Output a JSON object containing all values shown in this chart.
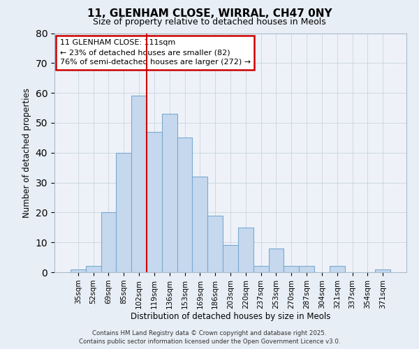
{
  "title": "11, GLENHAM CLOSE, WIRRAL, CH47 0NY",
  "subtitle": "Size of property relative to detached houses in Meols",
  "xlabel": "Distribution of detached houses by size in Meols",
  "ylabel": "Number of detached properties",
  "bar_labels": [
    "35sqm",
    "52sqm",
    "69sqm",
    "85sqm",
    "102sqm",
    "119sqm",
    "136sqm",
    "153sqm",
    "169sqm",
    "186sqm",
    "203sqm",
    "220sqm",
    "237sqm",
    "253sqm",
    "270sqm",
    "287sqm",
    "304sqm",
    "321sqm",
    "337sqm",
    "354sqm",
    "371sqm"
  ],
  "bar_values": [
    1,
    2,
    20,
    40,
    59,
    47,
    53,
    45,
    32,
    19,
    9,
    15,
    2,
    8,
    2,
    2,
    0,
    2,
    0,
    0,
    1
  ],
  "bar_color": "#c5d8ee",
  "bar_edge_color": "#7aaad0",
  "vline_color": "#cc0000",
  "ylim": [
    0,
    80
  ],
  "yticks": [
    0,
    10,
    20,
    30,
    40,
    50,
    60,
    70,
    80
  ],
  "annotation_title": "11 GLENHAM CLOSE: 111sqm",
  "annotation_line1": "← 23% of detached houses are smaller (82)",
  "annotation_line2": "76% of semi-detached houses are larger (272) →",
  "annotation_box_color": "#ffffff",
  "annotation_box_edge": "#cc0000",
  "footer1": "Contains HM Land Registry data © Crown copyright and database right 2025.",
  "footer2": "Contains public sector information licensed under the Open Government Licence v3.0.",
  "background_color": "#e8eef5",
  "plot_background": "#eef2f8"
}
